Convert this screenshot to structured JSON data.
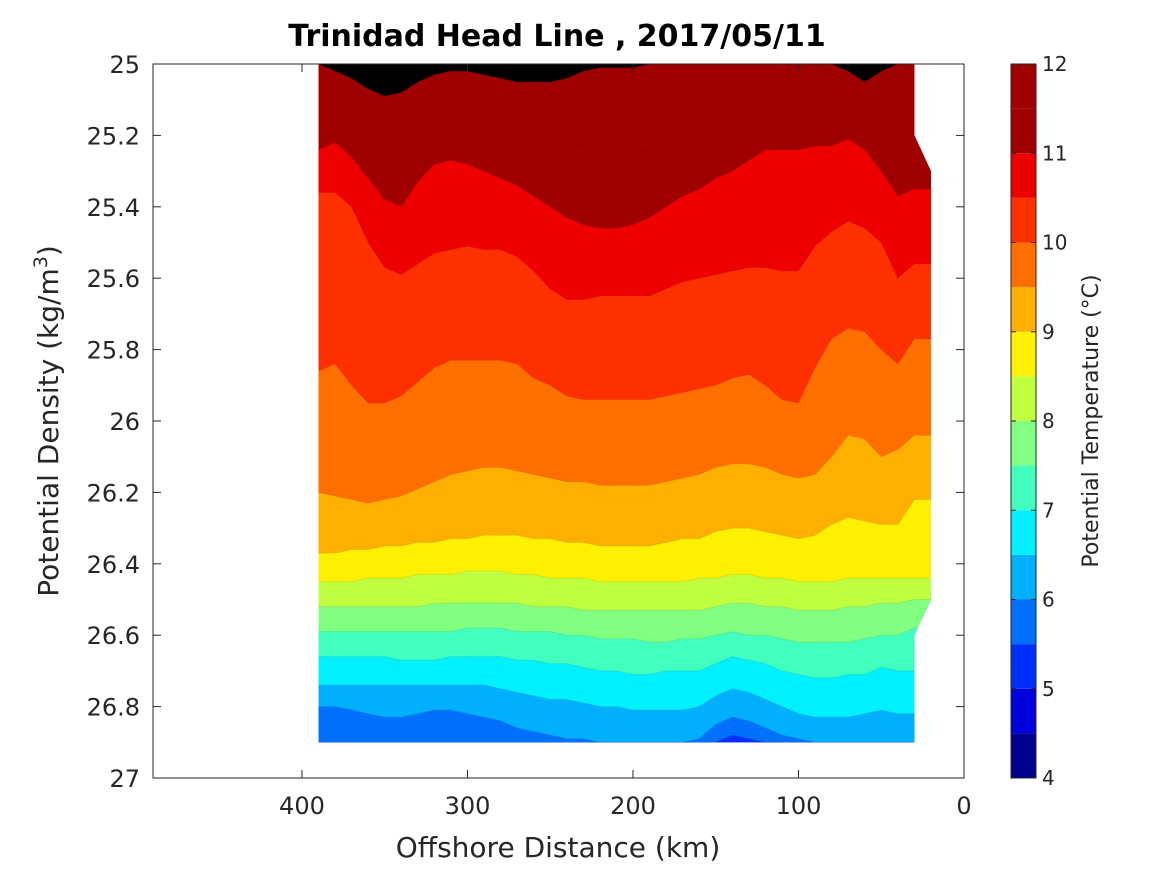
{
  "chart_data": {
    "type": "contour",
    "title": "Trinidad Head Line , 2017/05/11",
    "xlabel": "Offshore Distance (km)",
    "ylabel": "Potential Density (kg/m",
    "ylabel_sup": "3",
    "ylabel_close": ")",
    "colorbar_label": "Potential Temperature (°C)",
    "xlim": [
      490,
      0
    ],
    "x_reversed": true,
    "ylim": [
      25,
      27
    ],
    "y_reversed": true,
    "x_ticks": [
      {
        "value": 400,
        "label": "400"
      },
      {
        "value": 300,
        "label": "300"
      },
      {
        "value": 200,
        "label": "200"
      },
      {
        "value": 100,
        "label": "100"
      },
      {
        "value": 0,
        "label": "0"
      }
    ],
    "y_ticks": [
      {
        "value": 25,
        "label": "25"
      },
      {
        "value": 25.2,
        "label": "25.2"
      },
      {
        "value": 25.4,
        "label": "25.4"
      },
      {
        "value": 25.6,
        "label": "25.6"
      },
      {
        "value": 25.8,
        "label": "25.8"
      },
      {
        "value": 26,
        "label": "26"
      },
      {
        "value": 26.2,
        "label": "26.2"
      },
      {
        "value": 26.4,
        "label": "26.4"
      },
      {
        "value": 26.6,
        "label": "26.6"
      },
      {
        "value": 26.8,
        "label": "26.8"
      },
      {
        "value": 27,
        "label": "27"
      }
    ],
    "colorbar": {
      "min": 4,
      "max": 12,
      "levels": [
        4,
        4.5,
        5,
        5.5,
        6,
        6.5,
        7,
        7.5,
        8,
        8.5,
        9,
        9.5,
        10,
        10.5,
        11,
        11.5,
        12
      ],
      "colors": [
        "#00008f",
        "#0000df",
        "#0030ff",
        "#0070ff",
        "#00b0ff",
        "#00f0ff",
        "#40ffbf",
        "#80ff80",
        "#c0ff40",
        "#ffef00",
        "#ffaf00",
        "#ff6f00",
        "#ff3000",
        "#ef0000",
        "#9f0000",
        "#9f0000"
      ],
      "ticks": [
        {
          "value": 4,
          "label": "4"
        },
        {
          "value": 5,
          "label": "5"
        },
        {
          "value": 6,
          "label": "6"
        },
        {
          "value": 7,
          "label": "7"
        },
        {
          "value": 8,
          "label": "8"
        },
        {
          "value": 9,
          "label": "9"
        },
        {
          "value": 10,
          "label": "10"
        },
        {
          "value": 11,
          "label": "11"
        },
        {
          "value": 12,
          "label": "12"
        }
      ]
    },
    "field_extent": {
      "x_offshore_km": 390,
      "x_nearshore_km": 30,
      "density_top": 25,
      "density_bottom": 26.9,
      "notch": [
        [
          30,
          25.2
        ],
        [
          20,
          25.3
        ],
        [
          20,
          26.5
        ],
        [
          30,
          26.6
        ]
      ]
    },
    "station_x_km": [
      390,
      380,
      370,
      360,
      350,
      340,
      330,
      320,
      310,
      300,
      290,
      280,
      270,
      260,
      250,
      240,
      230,
      220,
      210,
      200,
      190,
      180,
      170,
      160,
      150,
      140,
      130,
      120,
      110,
      100,
      90,
      80,
      70,
      60,
      50,
      40,
      30
    ],
    "isotherms": [
      {
        "temp": 4.5,
        "density": [
          27.1,
          27.1,
          27.1,
          27.1,
          27.1,
          27.1,
          27.1,
          27.1,
          27.1,
          27.1,
          27.1,
          27.1,
          27.1,
          27.1,
          27.1,
          27.1,
          27.1,
          27.1,
          27.1,
          27.1,
          27.1,
          27.1,
          27.1,
          27.1,
          27.1,
          27.1,
          27.1,
          27.1,
          27.1,
          27.1,
          27.1,
          27.1,
          27.1,
          27.1,
          27.1,
          27.1,
          27.1
        ]
      },
      {
        "temp": 5.0,
        "density": [
          27.1,
          27.1,
          27.1,
          27.1,
          27.1,
          27.1,
          27.1,
          27.1,
          27.1,
          27.1,
          27.1,
          27.1,
          27.1,
          27.1,
          27.1,
          27.1,
          27.1,
          27.1,
          27.1,
          27.1,
          27.1,
          27.1,
          27.1,
          27.1,
          27.1,
          27.1,
          27.1,
          27.1,
          27.1,
          27.1,
          27.1,
          27.1,
          27.1,
          27.1,
          27.1,
          27.1,
          27.1
        ]
      },
      {
        "temp": 5.5,
        "density": [
          27.1,
          27.1,
          27.1,
          27.1,
          27.1,
          27.1,
          27.1,
          27.1,
          27.1,
          27.1,
          27.1,
          27.1,
          27.1,
          27.1,
          27.1,
          27.1,
          26.9,
          26.91,
          26.92,
          26.92,
          26.92,
          26.92,
          26.92,
          26.91,
          26.9,
          26.88,
          26.89,
          26.9,
          26.9,
          26.91,
          26.92,
          26.92,
          26.92,
          26.92,
          26.92,
          26.92,
          26.92
        ]
      },
      {
        "temp": 6.0,
        "density": [
          26.8,
          26.8,
          26.81,
          26.82,
          26.83,
          26.83,
          26.82,
          26.81,
          26.81,
          26.82,
          26.83,
          26.84,
          26.86,
          26.87,
          26.88,
          26.89,
          26.89,
          26.9,
          26.9,
          26.9,
          26.9,
          26.9,
          26.9,
          26.89,
          26.85,
          26.83,
          26.84,
          26.86,
          26.88,
          26.89,
          26.9,
          26.9,
          26.9,
          26.9,
          26.9,
          26.9,
          26.9
        ]
      },
      {
        "temp": 6.5,
        "density": [
          26.74,
          26.74,
          26.74,
          26.74,
          26.74,
          26.74,
          26.74,
          26.74,
          26.74,
          26.74,
          26.74,
          26.75,
          26.76,
          26.77,
          26.78,
          26.78,
          26.79,
          26.8,
          26.8,
          26.81,
          26.81,
          26.81,
          26.81,
          26.8,
          26.77,
          26.75,
          26.76,
          26.78,
          26.8,
          26.82,
          26.83,
          26.83,
          26.83,
          26.82,
          26.81,
          26.82,
          26.82
        ]
      },
      {
        "temp": 7.0,
        "density": [
          26.66,
          26.66,
          26.66,
          26.66,
          26.66,
          26.67,
          26.67,
          26.67,
          26.66,
          26.66,
          26.66,
          26.66,
          26.67,
          26.67,
          26.68,
          26.68,
          26.69,
          26.7,
          26.7,
          26.71,
          26.71,
          26.7,
          26.7,
          26.7,
          26.68,
          26.66,
          26.67,
          26.68,
          26.7,
          26.71,
          26.72,
          26.72,
          26.71,
          26.71,
          26.69,
          26.7,
          26.7
        ]
      },
      {
        "temp": 7.5,
        "density": [
          26.59,
          26.59,
          26.59,
          26.59,
          26.59,
          26.59,
          26.59,
          26.59,
          26.59,
          26.58,
          26.58,
          26.58,
          26.59,
          26.59,
          26.59,
          26.6,
          26.6,
          26.61,
          26.61,
          26.61,
          26.62,
          26.62,
          26.61,
          26.61,
          26.6,
          26.59,
          26.6,
          26.6,
          26.61,
          26.62,
          26.62,
          26.62,
          26.62,
          26.61,
          26.6,
          26.6,
          26.58
        ]
      },
      {
        "temp": 8.0,
        "density": [
          26.52,
          26.52,
          26.52,
          26.52,
          26.52,
          26.52,
          26.52,
          26.51,
          26.51,
          26.51,
          26.51,
          26.51,
          26.51,
          26.52,
          26.52,
          26.52,
          26.53,
          26.53,
          26.53,
          26.53,
          26.53,
          26.53,
          26.53,
          26.53,
          26.52,
          26.51,
          26.51,
          26.52,
          26.52,
          26.53,
          26.53,
          26.53,
          26.52,
          26.52,
          26.51,
          26.51,
          26.5
        ]
      },
      {
        "temp": 8.5,
        "density": [
          26.45,
          26.45,
          26.45,
          26.44,
          26.44,
          26.44,
          26.43,
          26.43,
          26.43,
          26.42,
          26.42,
          26.42,
          26.43,
          26.43,
          26.44,
          26.44,
          26.44,
          26.45,
          26.45,
          26.45,
          26.45,
          26.45,
          26.45,
          26.44,
          26.44,
          26.43,
          26.43,
          26.44,
          26.44,
          26.45,
          26.45,
          26.45,
          26.44,
          26.44,
          26.44,
          26.44,
          26.44
        ]
      },
      {
        "temp": 9.0,
        "density": [
          26.37,
          26.37,
          26.36,
          26.36,
          26.35,
          26.35,
          26.34,
          26.34,
          26.33,
          26.33,
          26.32,
          26.32,
          26.32,
          26.33,
          26.33,
          26.34,
          26.34,
          26.35,
          26.35,
          26.35,
          26.35,
          26.34,
          26.33,
          26.33,
          26.31,
          26.3,
          26.3,
          26.31,
          26.32,
          26.33,
          26.32,
          26.29,
          26.27,
          26.28,
          26.29,
          26.29,
          26.22
        ]
      },
      {
        "temp": 9.5,
        "density": [
          26.2,
          26.21,
          26.22,
          26.23,
          26.22,
          26.21,
          26.19,
          26.17,
          26.15,
          26.14,
          26.13,
          26.13,
          26.14,
          26.15,
          26.16,
          26.17,
          26.17,
          26.18,
          26.18,
          26.18,
          26.18,
          26.17,
          26.16,
          26.15,
          26.13,
          26.12,
          26.12,
          26.13,
          26.15,
          26.16,
          26.15,
          26.1,
          26.04,
          26.05,
          26.1,
          26.08,
          26.04
        ]
      },
      {
        "temp": 10.0,
        "density": [
          25.86,
          25.84,
          25.9,
          25.95,
          25.95,
          25.93,
          25.89,
          25.85,
          25.83,
          25.83,
          25.83,
          25.83,
          25.84,
          25.88,
          25.9,
          25.93,
          25.94,
          25.94,
          25.94,
          25.94,
          25.94,
          25.93,
          25.92,
          25.91,
          25.9,
          25.88,
          25.87,
          25.9,
          25.94,
          25.95,
          25.85,
          25.77,
          25.74,
          25.75,
          25.8,
          25.84,
          25.77
        ]
      },
      {
        "temp": 10.5,
        "density": [
          25.36,
          25.36,
          25.4,
          25.5,
          25.57,
          25.59,
          25.56,
          25.53,
          25.52,
          25.51,
          25.52,
          25.52,
          25.54,
          25.58,
          25.63,
          25.66,
          25.66,
          25.65,
          25.65,
          25.65,
          25.65,
          25.63,
          25.61,
          25.6,
          25.59,
          25.58,
          25.57,
          25.57,
          25.58,
          25.58,
          25.51,
          25.47,
          25.44,
          25.46,
          25.5,
          25.6,
          25.56
        ]
      },
      {
        "temp": 11.0,
        "density": [
          25.24,
          25.22,
          25.26,
          25.32,
          25.38,
          25.4,
          25.33,
          25.28,
          25.27,
          25.28,
          25.3,
          25.32,
          25.34,
          25.37,
          25.4,
          25.43,
          25.45,
          25.46,
          25.46,
          25.45,
          25.43,
          25.4,
          25.37,
          25.35,
          25.32,
          25.3,
          25.27,
          25.24,
          25.24,
          25.24,
          25.23,
          25.23,
          25.21,
          25.24,
          25.3,
          25.37,
          25.35
        ]
      },
      {
        "temp": 11.5,
        "density": [
          25.1,
          25.1,
          25.16,
          25.23,
          25.25,
          25.23,
          25.19,
          25.15,
          25.14,
          25.14,
          25.15,
          25.16,
          25.18,
          25.2,
          25.21,
          25.22,
          25.23,
          25.24,
          25.25,
          25.25,
          25.24,
          25.21,
          25.17,
          25.15,
          25.13,
          25.11,
          25.08,
          25.06,
          25.02,
          25.0,
          25.0,
          25.02,
          25.11,
          25.13,
          25.07,
          25.0,
          25.0
        ]
      },
      {
        "temp": 12.0,
        "density": [
          25.0,
          25.02,
          25.04,
          25.07,
          25.09,
          25.08,
          25.05,
          25.03,
          25.02,
          25.02,
          25.03,
          25.04,
          25.05,
          25.05,
          25.05,
          25.04,
          25.02,
          25.01,
          25.01,
          25.01,
          25.0,
          25.0,
          25.0,
          25.0,
          25.0,
          25.0,
          25.0,
          25.0,
          25.0,
          25.0,
          25.0,
          25.0,
          25.02,
          25.05,
          25.02,
          25.0,
          25.0
        ]
      }
    ]
  }
}
